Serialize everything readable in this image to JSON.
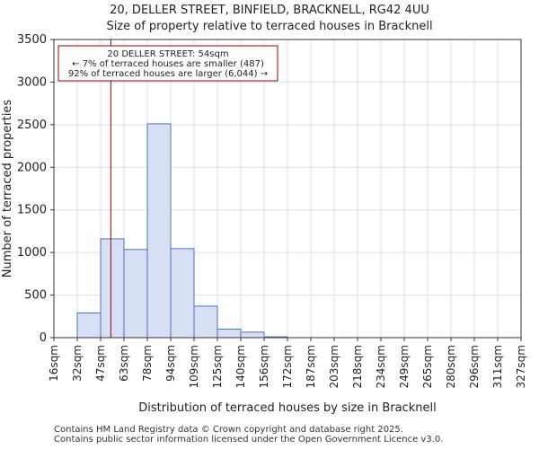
{
  "chart_data": {
    "type": "histogram",
    "title": "20, DELLER STREET, BINFIELD, BRACKNELL, RG42 4UU",
    "subtitle": "Size of property relative to terraced houses in Bracknell",
    "xlabel": "Distribution of terraced houses by size in Bracknell",
    "ylabel": "Number of terraced properties",
    "ylim": [
      0,
      3500
    ],
    "yticks": [
      0,
      500,
      1000,
      1500,
      2000,
      2500,
      3000,
      3500
    ],
    "bin_edges": [
      16,
      32,
      47,
      63,
      78,
      94,
      109,
      125,
      140,
      156,
      172,
      187,
      203,
      218,
      234,
      249,
      265,
      280,
      296,
      311,
      327
    ],
    "tick_labels": [
      "16sqm",
      "32sqm",
      "47sqm",
      "63sqm",
      "78sqm",
      "94sqm",
      "109sqm",
      "125sqm",
      "140sqm",
      "156sqm",
      "172sqm",
      "187sqm",
      "203sqm",
      "218sqm",
      "234sqm",
      "249sqm",
      "265sqm",
      "280sqm",
      "296sqm",
      "311sqm",
      "327sqm"
    ],
    "values": [
      0,
      290,
      1160,
      1035,
      2510,
      1045,
      370,
      100,
      65,
      10,
      0,
      0,
      0,
      0,
      0,
      0,
      0,
      0,
      0,
      0
    ],
    "marker": {
      "x": 54,
      "label": "20 DELLER STREET: 54sqm"
    },
    "annotation": [
      "20 DELLER STREET: 54sqm",
      "← 7% of terraced houses are smaller (487)",
      "92% of terraced houses are larger (6,044) →"
    ],
    "colors": {
      "bar_fill": "#d6dff4",
      "bar_edge": "#4a72c4",
      "marker": "#990000",
      "grid": "#d9dfee"
    }
  },
  "footer": {
    "line1": "Contains HM Land Registry data © Crown copyright and database right 2025.",
    "line2": "Contains public sector information licensed under the Open Government Licence v3.0."
  }
}
